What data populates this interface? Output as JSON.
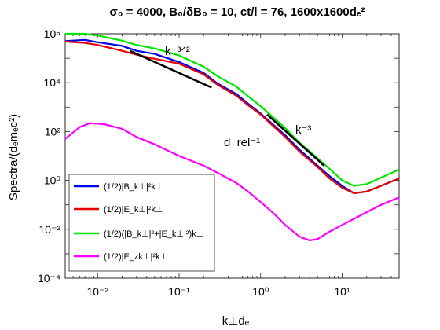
{
  "chart_data": {
    "type": "line",
    "title": "σ₀ = 4000, B₀/δB₀ = 10, ct/l = 76, 1600x1600dₑ²",
    "xlabel": "k⊥dₑ",
    "ylabel": "Spectra/(dₑmₑc²)",
    "x_scale": "log",
    "y_scale": "log",
    "xlim": [
      0.004,
      50
    ],
    "ylim": [
      0.0001,
      1000000
    ],
    "x_ticks": [
      0.01,
      0.1,
      1,
      10
    ],
    "x_tick_labels": [
      "10⁻²",
      "10⁻¹",
      "10⁰",
      "10¹"
    ],
    "y_ticks": [
      0.0001,
      0.01,
      1,
      100,
      10000,
      1000000
    ],
    "y_tick_labels": [
      "10⁻⁴",
      "10⁻²",
      "10⁰",
      "10²",
      "10⁴",
      "10⁶"
    ],
    "grid": false,
    "legend_position": "bottom-left",
    "series": [
      {
        "name": "(1/2)|B_k⊥|²k⊥",
        "color": "#0000e6",
        "points": [
          [
            0.004,
            500000
          ],
          [
            0.007,
            560000
          ],
          [
            0.01,
            450000
          ],
          [
            0.02,
            320000
          ],
          [
            0.03,
            200000
          ],
          [
            0.05,
            150000
          ],
          [
            0.1,
            70000
          ],
          [
            0.2,
            25000
          ],
          [
            0.3,
            9000
          ],
          [
            0.5,
            3500
          ],
          [
            0.7,
            1400
          ],
          [
            1,
            550
          ],
          [
            2,
            70
          ],
          [
            3,
            18
          ],
          [
            5,
            4
          ],
          [
            7,
            1.5
          ],
          [
            10,
            0.6
          ],
          [
            14,
            0.3
          ],
          [
            20,
            0.35
          ],
          [
            30,
            0.6
          ],
          [
            50,
            1.2
          ]
        ]
      },
      {
        "name": "(1/2)|E_k⊥|²k⊥",
        "color": "#e60000",
        "points": [
          [
            0.004,
            480000
          ],
          [
            0.007,
            420000
          ],
          [
            0.01,
            350000
          ],
          [
            0.02,
            200000
          ],
          [
            0.03,
            140000
          ],
          [
            0.05,
            95000
          ],
          [
            0.1,
            60000
          ],
          [
            0.2,
            22000
          ],
          [
            0.3,
            8000
          ],
          [
            0.5,
            3000
          ],
          [
            0.7,
            1200
          ],
          [
            1,
            500
          ],
          [
            2,
            60
          ],
          [
            3,
            15
          ],
          [
            5,
            3.5
          ],
          [
            7,
            1.2
          ],
          [
            10,
            0.5
          ],
          [
            14,
            0.3
          ],
          [
            20,
            0.35
          ],
          [
            30,
            0.6
          ],
          [
            50,
            1.2
          ]
        ]
      },
      {
        "name": "(1/2)(|B_k⊥|²+|E_k⊥|²)k⊥",
        "color": "#00e600",
        "points": [
          [
            0.004,
            1000000
          ],
          [
            0.007,
            1000000
          ],
          [
            0.01,
            850000
          ],
          [
            0.02,
            520000
          ],
          [
            0.03,
            350000
          ],
          [
            0.05,
            250000
          ],
          [
            0.1,
            130000
          ],
          [
            0.2,
            45000
          ],
          [
            0.3,
            18000
          ],
          [
            0.5,
            7000
          ],
          [
            0.7,
            2800
          ],
          [
            1,
            1100
          ],
          [
            2,
            140
          ],
          [
            3,
            35
          ],
          [
            5,
            8
          ],
          [
            7,
            3
          ],
          [
            10,
            1
          ],
          [
            14,
            0.6
          ],
          [
            20,
            0.7
          ],
          [
            30,
            1.3
          ],
          [
            50,
            2.8
          ]
        ]
      },
      {
        "name": "(1/2)|E_zk⊥|²k⊥",
        "color": "#ff00ff",
        "points": [
          [
            0.004,
            50
          ],
          [
            0.006,
            150
          ],
          [
            0.008,
            220
          ],
          [
            0.012,
            200
          ],
          [
            0.02,
            130
          ],
          [
            0.03,
            60
          ],
          [
            0.05,
            30
          ],
          [
            0.1,
            10
          ],
          [
            0.2,
            4
          ],
          [
            0.3,
            2
          ],
          [
            0.5,
            0.8
          ],
          [
            0.7,
            0.35
          ],
          [
            1,
            0.13
          ],
          [
            1.5,
            0.04
          ],
          [
            2,
            0.015
          ],
          [
            3,
            0.005
          ],
          [
            4,
            0.0035
          ],
          [
            5,
            0.004
          ],
          [
            7,
            0.008
          ],
          [
            10,
            0.015
          ],
          [
            20,
            0.05
          ],
          [
            30,
            0.1
          ],
          [
            50,
            0.2
          ]
        ]
      }
    ],
    "reference_lines": [
      {
        "label": "k⁻³ᐟ²",
        "color": "#000000",
        "x": [
          0.025,
          0.25
        ],
        "y": [
          200000,
          6324.6
        ]
      },
      {
        "label": "k⁻³",
        "color": "#000000",
        "x": [
          1.2,
          6
        ],
        "y": [
          500,
          4
        ]
      }
    ],
    "vertical_line": {
      "x": 0.3,
      "label": "d_rel⁻¹"
    }
  }
}
